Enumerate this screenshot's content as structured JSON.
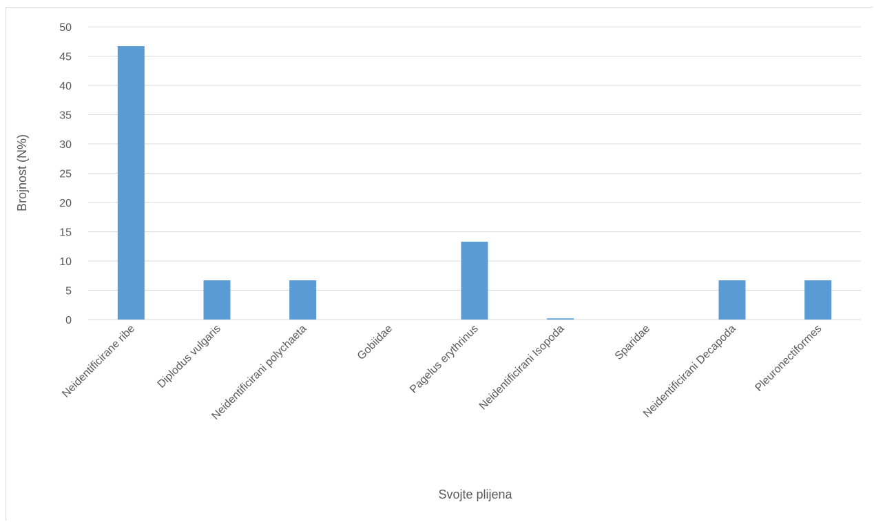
{
  "chart_data": {
    "type": "bar",
    "title": "",
    "xlabel": "Svojte plijena",
    "ylabel": "Brojnost (N%)",
    "categories": [
      "Neidentificirane ribe",
      "Diplodus vulgaris",
      "Neidentificirani polychaeta",
      "Gobiidae",
      "Pagelus erythrinus",
      "Neidentificirani Isopoda",
      "Sparidae",
      "Neidentificirani Decapoda",
      "Pleuronectiformes"
    ],
    "values": [
      46.7,
      6.7,
      6.7,
      0,
      13.3,
      0.2,
      0,
      6.7,
      6.7
    ],
    "ylim": [
      0,
      50
    ],
    "yticks": [
      "0",
      "5",
      "10",
      "15",
      "20",
      "25",
      "30",
      "35",
      "40",
      "45",
      "50"
    ],
    "grid": true,
    "legend": "none",
    "bar_color": "#5b9bd5"
  }
}
